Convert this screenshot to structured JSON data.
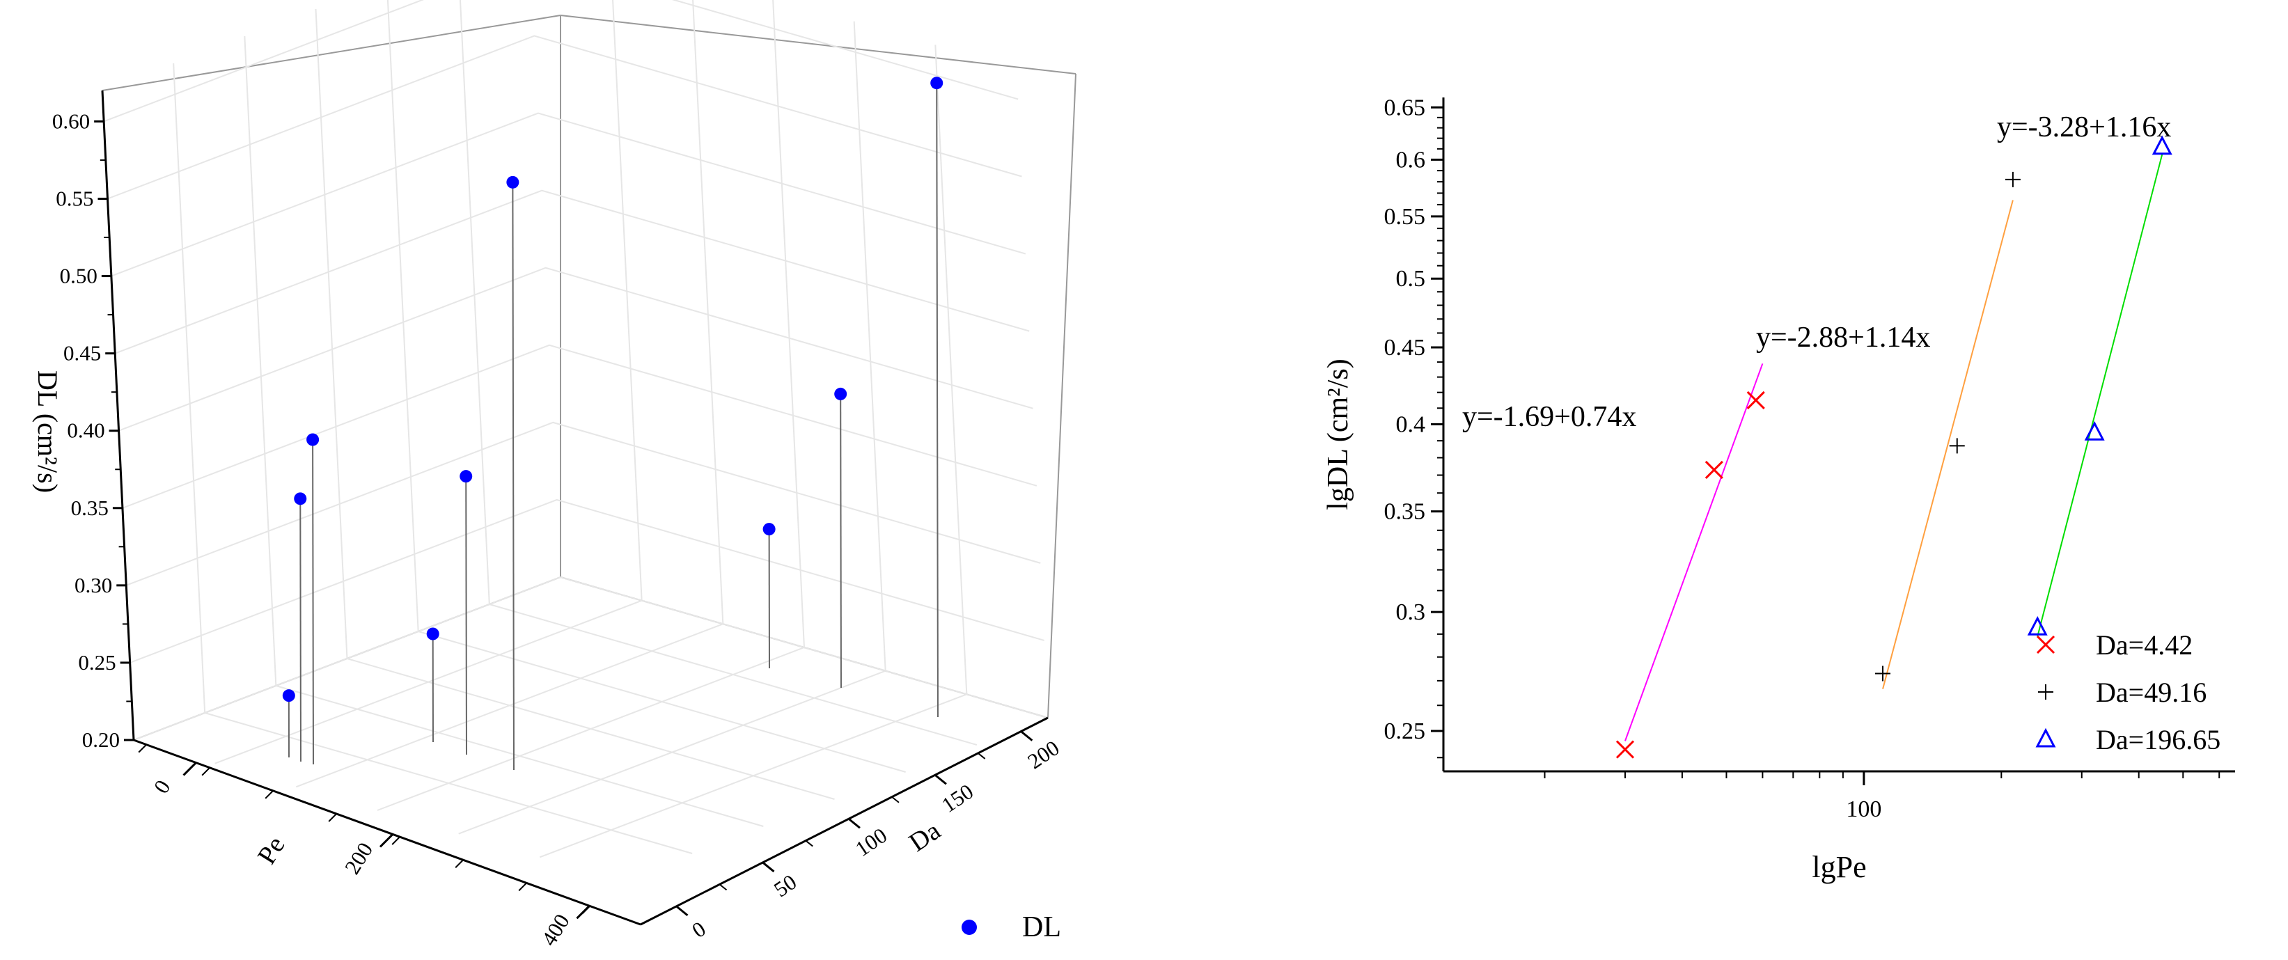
{
  "chart_data": [
    {
      "type": "scatter",
      "subtype": "3d-stem",
      "zlabel": "DL (cm²/s)",
      "xlabel": "Pe",
      "ylabel": "Da",
      "z_ticks": [
        "0.20",
        "0.25",
        "0.30",
        "0.35",
        "0.40",
        "0.45",
        "0.50",
        "0.55",
        "0.60"
      ],
      "pe_ticks": [
        "0",
        "200",
        "400"
      ],
      "da_ticks": [
        "0",
        "50",
        "100",
        "150",
        "200"
      ],
      "zlim": [
        0.2,
        0.62
      ],
      "grid": true,
      "legend": {
        "label": "DL",
        "color": "#0000ff",
        "position": "bottom-center"
      },
      "points": [
        {
          "pe": 18,
          "da": 4.42,
          "z": 0.24
        },
        {
          "pe": 40,
          "da": 4.42,
          "z": 0.37
        },
        {
          "pe": 55,
          "da": 4.42,
          "z": 0.41
        },
        {
          "pe": 110,
          "da": 49.16,
          "z": 0.27
        },
        {
          "pe": 160,
          "da": 49.16,
          "z": 0.38
        },
        {
          "pe": 210,
          "da": 49.16,
          "z": 0.58
        },
        {
          "pe": 240,
          "da": 196.65,
          "z": 0.29
        },
        {
          "pe": 320,
          "da": 196.65,
          "z": 0.39
        },
        {
          "pe": 450,
          "da": 196.65,
          "z": 0.61
        }
      ]
    },
    {
      "type": "scatter",
      "xlabel": "lgPe",
      "ylabel": "lgDL (cm²/s)",
      "xscale": "log",
      "yscale": "log",
      "xlim": [
        12,
        650
      ],
      "ylim": [
        0.235,
        0.66
      ],
      "x_ticks": [
        "100"
      ],
      "y_ticks": [
        "0.25",
        "0.3",
        "0.35",
        "0.4",
        "0.45",
        "0.5",
        "0.55",
        "0.6",
        "0.65"
      ],
      "legend_position": "bottom-right",
      "series": [
        {
          "name": "Da=4.42",
          "marker": "x",
          "color": "#ff0000",
          "line_color": "#ff00ff",
          "x": [
            30,
            47,
            58
          ],
          "y": [
            0.243,
            0.373,
            0.415
          ],
          "fit": {
            "x": [
              30,
              60
            ],
            "label": "y=-1.69+0.74x"
          }
        },
        {
          "name": "Da=49.16",
          "marker": "+",
          "color": "#000000",
          "line_color": "#ffa040",
          "x": [
            110,
            160,
            212
          ],
          "y": [
            0.273,
            0.387,
            0.582
          ],
          "fit": {
            "x": [
              110,
              212
            ],
            "label": "y=-2.88+1.14x"
          }
        },
        {
          "name": "Da=196.65",
          "marker": "triangle",
          "color": "#0000ff",
          "line_color": "#00dd00",
          "x": [
            240,
            320,
            450
          ],
          "y": [
            0.293,
            0.395,
            0.612
          ],
          "fit": {
            "x": [
              240,
              450
            ],
            "label": "y=-3.28+1.16x"
          }
        }
      ]
    }
  ]
}
